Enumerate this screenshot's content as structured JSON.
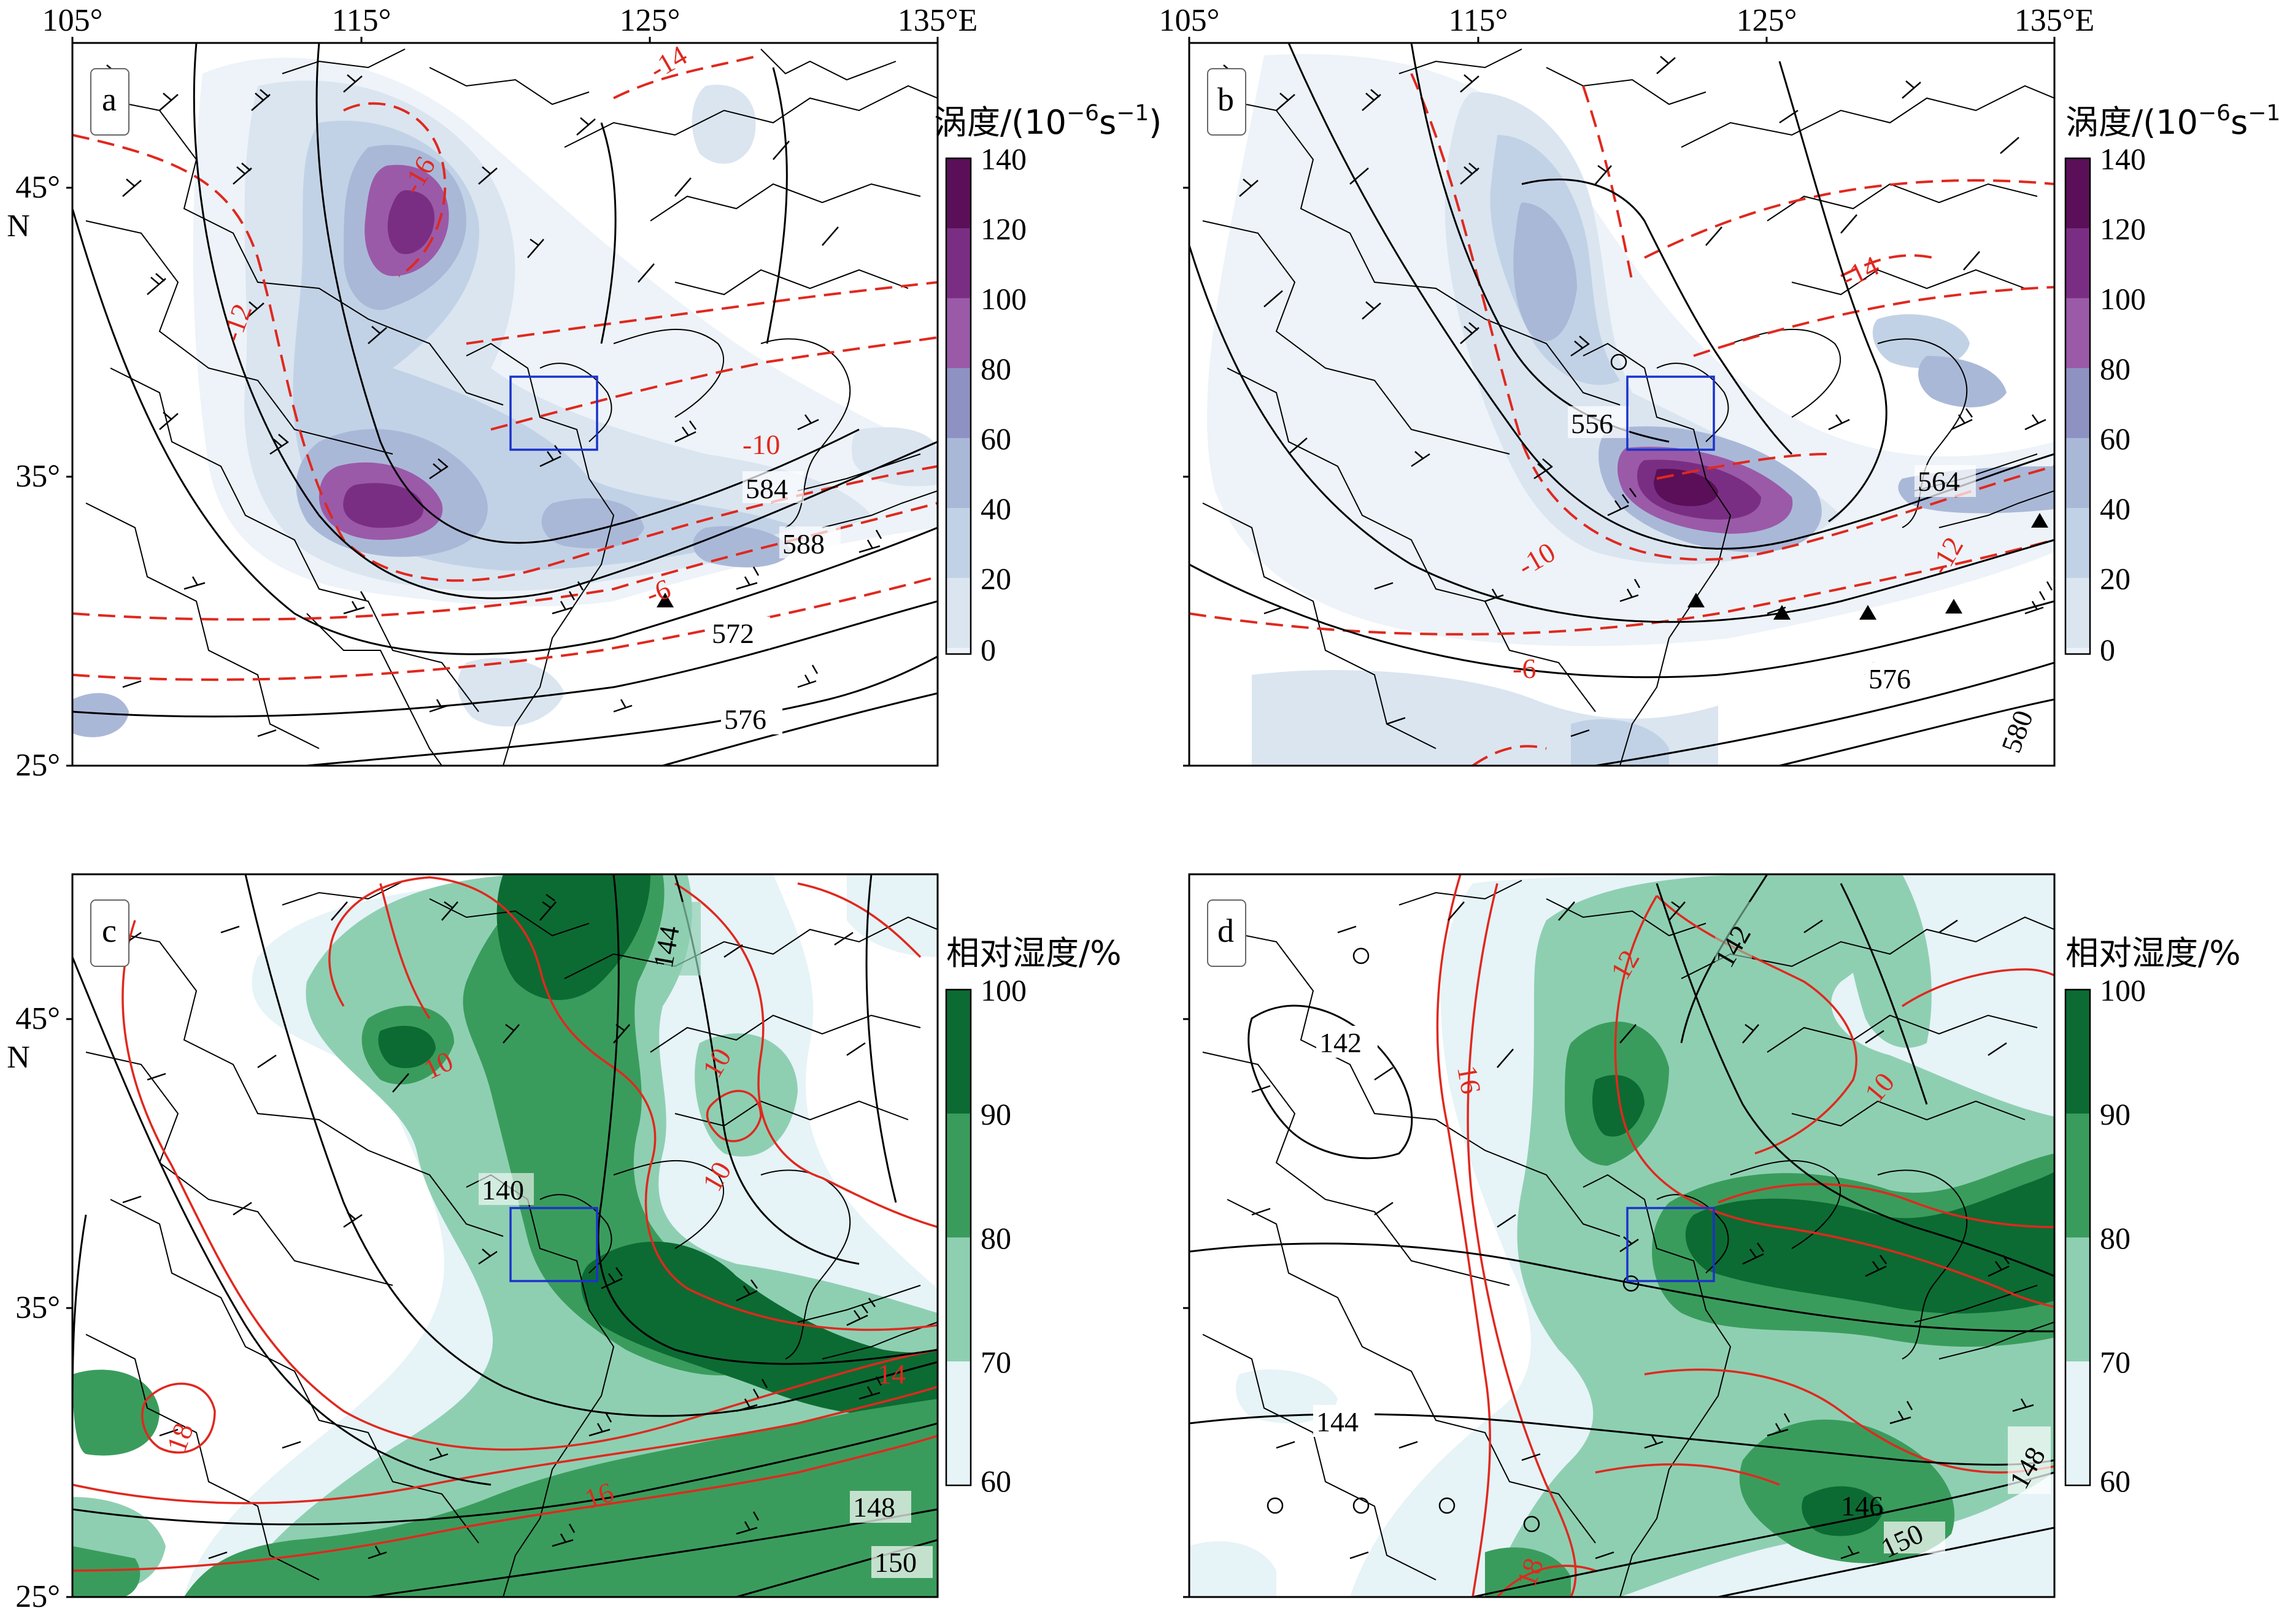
{
  "x_ticks": [
    "105°",
    "115°",
    "125°",
    "135°E"
  ],
  "y_ticks": [
    "45°",
    "35°",
    "25°"
  ],
  "y_axis_letter": "N",
  "panels": [
    {
      "letter": "a",
      "field": "vorticity",
      "height_labels": [
        "584",
        "588",
        "572",
        "576"
      ],
      "temp_labels": [
        "-14",
        "-16",
        "-12",
        "-10",
        "-6"
      ]
    },
    {
      "letter": "b",
      "field": "vorticity",
      "height_labels": [
        "556",
        "564",
        "576",
        "580"
      ],
      "temp_labels": [
        "-14",
        "-12",
        "-10",
        "-6"
      ]
    },
    {
      "letter": "c",
      "field": "humidity",
      "height_labels": [
        "140",
        "144",
        "148",
        "150"
      ],
      "temp_labels": [
        "10",
        "10",
        "10",
        "14",
        "16",
        "18"
      ]
    },
    {
      "letter": "d",
      "field": "humidity",
      "height_labels": [
        "142",
        "142",
        "144",
        "146",
        "148",
        "150"
      ],
      "temp_labels": [
        "12",
        "16",
        "10",
        "18"
      ]
    }
  ],
  "colorbars": {
    "vorticity": {
      "label_prefix": "涡度/(10",
      "label_exp": "−6",
      "label_mid": "s",
      "label_exp2": "−1",
      "label_suffix": ")",
      "ticks": [
        "140",
        "120",
        "100",
        "80",
        "60",
        "40",
        "20",
        "0"
      ],
      "colors": [
        "#5b0f58",
        "#7a2e83",
        "#9a5aa8",
        "#8e92c2",
        "#aab8d8",
        "#c2d2e6",
        "#dae5f0",
        "#edf3f8"
      ]
    },
    "humidity": {
      "label": "相对湿度/%",
      "ticks": [
        "100",
        "90",
        "80",
        "70",
        "60"
      ],
      "colors": [
        "#0c6b32",
        "#3a9c5c",
        "#8ecfb2",
        "#e6f3f7"
      ]
    }
  },
  "colors": {
    "box": "#1a33cc",
    "temp_contour": "#e0281e",
    "height_contour": "#000000"
  }
}
